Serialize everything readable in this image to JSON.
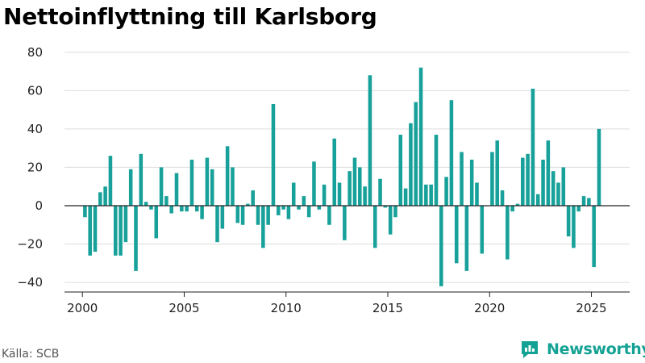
{
  "title": "Nettoinflyttning till Karlsborg",
  "source": "Källa: SCB",
  "brand": {
    "name": "Newsworthy",
    "color": "#14a294"
  },
  "colors": {
    "bar": "#17a19a",
    "grid": "#dddddd",
    "baseline": "#222222",
    "axis": "#222222"
  },
  "chart_data": {
    "type": "bar",
    "title": "Nettoinflyttning till Karlsborg",
    "xlabel": "",
    "ylabel": "",
    "ylim": [
      -45,
      82
    ],
    "yticks": [
      -40,
      -20,
      0,
      20,
      40,
      60,
      80
    ],
    "xticks": [
      "2000",
      "2005",
      "2010",
      "2015",
      "2020",
      "2025"
    ],
    "xlim": [
      1999.12,
      2026.88
    ],
    "grid": true,
    "x_start": 2000.125,
    "x_step": 0.25,
    "series": [
      {
        "values": [
          -6,
          -26,
          -24,
          7,
          10,
          26,
          -26,
          -26,
          -19,
          19,
          -34,
          27,
          2,
          -2,
          -17,
          20,
          5,
          -4,
          17,
          -3,
          -3,
          24,
          -3,
          -7,
          25,
          19,
          -19,
          -12,
          31,
          20,
          -9,
          -10,
          1,
          8,
          -10,
          -22,
          -10,
          53,
          -5,
          -2,
          -7,
          12,
          -2,
          5,
          -6,
          23,
          -2,
          11,
          -10,
          35,
          12,
          -18,
          18,
          25,
          20,
          10,
          68,
          -22,
          14,
          -1,
          -15,
          -6,
          37,
          9,
          43,
          54,
          72,
          11,
          11,
          37,
          -42,
          15,
          55,
          -30,
          28,
          -34,
          24,
          12,
          -25,
          0,
          28,
          34,
          8,
          -28,
          -3,
          1,
          25,
          27,
          61,
          6,
          24,
          34,
          18,
          12,
          20,
          -16,
          -22,
          -3,
          5,
          4,
          -32,
          40
        ]
      }
    ]
  }
}
